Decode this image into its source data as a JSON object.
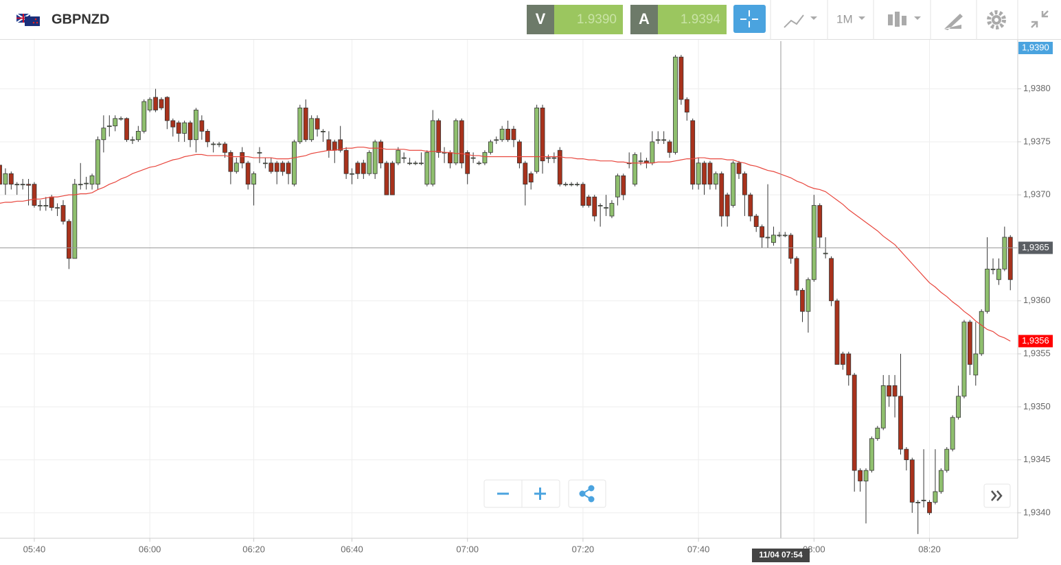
{
  "header": {
    "symbol": "GBPNZD",
    "sell_label": "V",
    "sell": "1.9390",
    "buy_label": "A",
    "buy": "1.9394",
    "timeframe": "1M"
  },
  "chart_data": {
    "type": "candlestick",
    "up_color": "#8fbf6e",
    "down_color": "#a8321c",
    "grid": true,
    "categories": [
      null,
      null,
      null,
      null,
      null,
      null,
      "05:40",
      null,
      null,
      null,
      null,
      null,
      null,
      null,
      null,
      null,
      null,
      null,
      null,
      null,
      null,
      null,
      null,
      null,
      null,
      null,
      "06:00",
      null,
      null,
      null,
      null,
      null,
      null,
      null,
      null,
      null,
      null,
      null,
      null,
      null,
      null,
      null,
      null,
      null,
      "06:20",
      null,
      null,
      null,
      null,
      null,
      null,
      null,
      null,
      null,
      null,
      null,
      null,
      null,
      null,
      null,
      null,
      "06:40",
      null,
      null,
      null,
      null,
      null,
      null,
      null,
      null,
      null,
      null,
      null,
      null,
      null,
      null,
      null,
      null,
      null,
      null,
      null,
      "07:00",
      null,
      null,
      null,
      null,
      null,
      null,
      null,
      null,
      null,
      null,
      null,
      null,
      null,
      null,
      null,
      null,
      null,
      null,
      null,
      "07:20",
      null,
      null,
      null,
      null,
      null,
      null,
      null,
      null,
      null,
      null,
      null,
      null,
      null,
      null,
      null,
      null,
      null,
      null,
      null,
      "07:40",
      null,
      null,
      null,
      null,
      null,
      null,
      null,
      null,
      null,
      null,
      null,
      null,
      null,
      null,
      null,
      null,
      null,
      null,
      null,
      "08:00",
      null,
      null,
      null,
      null,
      null,
      null,
      null,
      null,
      null,
      null,
      null,
      null,
      null,
      null,
      null,
      null,
      null,
      null,
      null,
      "08:20",
      null,
      null,
      null,
      null,
      null,
      null,
      null,
      null,
      null,
      null,
      null,
      null,
      null,
      null
    ],
    "open": [
      1.93728,
      1.9371,
      1.9372,
      1.9371,
      1.9371,
      1.9371,
      1.9371,
      1.9369,
      1.9369,
      1.93698,
      1.93688,
      1.9369,
      1.93675,
      1.9364,
      1.9371,
      1.93711,
      1.9371,
      1.9371,
      1.93752,
      1.93765,
      1.93765,
      1.93772,
      1.93772,
      1.93752,
      1.93752,
      1.9376,
      1.9378,
      1.93792,
      1.9379,
      1.93792,
      1.9377,
      1.93768,
      1.93758,
      1.93768,
      1.93752,
      1.9377,
      1.9376,
      1.93748,
      1.93748,
      1.93748,
      1.9374,
      1.93722,
      1.9374,
      1.9373,
      1.9371,
      1.9374,
      1.9373,
      1.9373,
      1.9373,
      1.9373,
      1.9373,
      1.9371,
      1.9375,
      1.93782,
      1.93752,
      1.93772,
      1.9376,
      1.93752,
      1.9375,
      1.93752,
      1.93742,
      1.9372,
      1.9373,
      1.9373,
      1.9372,
      1.9372,
      1.9375,
      1.9373,
      1.9373,
      1.9373,
      1.93735,
      1.9373,
      1.9373,
      1.9373,
      1.9371,
      1.9371,
      1.9377,
      1.9374,
      1.9374,
      1.9373,
      1.9377,
      1.9374,
      1.93735,
      1.9373,
      1.9373,
      1.9374,
      1.93752,
      1.93752,
      1.93762,
      1.93762,
      1.9375,
      1.9373,
      1.9372,
      1.93722,
      1.93782,
      1.93735,
      1.93735,
      1.93742,
      1.9371,
      1.9371,
      1.9371,
      1.9371,
      1.93698,
      1.93698,
      1.9369,
      1.93688,
      1.9368,
      1.93698,
      1.93718,
      1.9373,
      1.9371,
      1.93732,
      1.93732,
      1.9373,
      1.93752,
      1.93752,
      1.9375,
      1.9374,
      1.9383,
      1.9379,
      1.9377,
      1.9371,
      1.9373,
      1.9373,
      1.9371,
      1.9372,
      1.937,
      1.9369,
      1.9373,
      1.9372,
      1.937,
      1.9368,
      1.9367,
      1.9366,
      1.93655,
      1.93662,
      1.93662,
      1.93662,
      1.9364,
      1.9361,
      1.9359,
      1.9362,
      1.9369,
      1.93645,
      1.9364,
      1.936,
      1.9355,
      1.9355,
      1.9353,
      1.9344,
      1.9343,
      1.9344,
      1.9347,
      1.9348,
      1.9352,
      1.9352,
      1.9351,
      1.9346,
      1.9345,
      1.9341,
      1.93412,
      1.9341,
      1.9341,
      1.9342,
      1.9344,
      1.9346,
      1.9349,
      1.9351,
      1.9358,
      1.9353,
      1.9355,
      1.9359,
      1.9363,
      1.9362,
      1.9363,
      1.9366
    ],
    "high": [
      1.9373,
      1.93725,
      1.93722,
      1.93712,
      1.93715,
      1.93715,
      1.93712,
      1.93695,
      1.93698,
      1.937,
      1.93692,
      1.93695,
      1.93677,
      1.93715,
      1.9373,
      1.93717,
      1.9372,
      1.93755,
      1.93775,
      1.93775,
      1.93775,
      1.93774,
      1.93773,
      1.93755,
      1.93765,
      1.9379,
      1.93792,
      1.938,
      1.93792,
      1.93793,
      1.93772,
      1.9377,
      1.9377,
      1.9377,
      1.93782,
      1.93775,
      1.93762,
      1.9375,
      1.9375,
      1.9375,
      1.93742,
      1.93735,
      1.93745,
      1.93732,
      1.93722,
      1.93745,
      1.93735,
      1.93735,
      1.93732,
      1.93732,
      1.93732,
      1.93752,
      1.93785,
      1.9379,
      1.93775,
      1.93775,
      1.93762,
      1.9376,
      1.93752,
      1.93765,
      1.93745,
      1.93725,
      1.93732,
      1.93733,
      1.93742,
      1.93752,
      1.93752,
      1.93732,
      1.93732,
      1.93745,
      1.9374,
      1.93735,
      1.93732,
      1.9374,
      1.93742,
      1.9378,
      1.93772,
      1.93745,
      1.93742,
      1.93772,
      1.93772,
      1.93742,
      1.9374,
      1.93732,
      1.93742,
      1.93752,
      1.93755,
      1.93765,
      1.9377,
      1.93765,
      1.93752,
      1.93732,
      1.93722,
      1.93785,
      1.93785,
      1.93738,
      1.9374,
      1.93745,
      1.93712,
      1.93712,
      1.93712,
      1.93712,
      1.937,
      1.937,
      1.93692,
      1.937,
      1.93695,
      1.9372,
      1.9372,
      1.9374,
      1.9374,
      1.9374,
      1.93735,
      1.9376,
      1.9376,
      1.9376,
      1.93752,
      1.93832,
      1.93832,
      1.93792,
      1.93772,
      1.93735,
      1.93732,
      1.93732,
      1.93722,
      1.93722,
      1.93702,
      1.93732,
      1.93732,
      1.93722,
      1.93702,
      1.93682,
      1.93672,
      1.9371,
      1.9367,
      1.93665,
      1.93665,
      1.93664,
      1.93642,
      1.93612,
      1.93622,
      1.937,
      1.93692,
      1.9366,
      1.93642,
      1.93602,
      1.93552,
      1.93552,
      1.93532,
      1.93442,
      1.93442,
      1.93472,
      1.93482,
      1.9353,
      1.9353,
      1.9353,
      1.9355,
      1.93462,
      1.93452,
      1.93412,
      1.9346,
      1.93412,
      1.9346,
      1.93442,
      1.93462,
      1.93492,
      1.9352,
      1.93582,
      1.93582,
      1.9358,
      1.93592,
      1.9366,
      1.9364,
      1.9364,
      1.9367,
      1.93662
    ],
    "low": [
      1.937,
      1.937,
      1.93705,
      1.937,
      1.93705,
      1.9369,
      1.93688,
      1.93685,
      1.93685,
      1.93685,
      1.9368,
      1.93672,
      1.9363,
      1.9364,
      1.93705,
      1.93705,
      1.93705,
      1.93705,
      1.9374,
      1.93755,
      1.9376,
      1.9377,
      1.9375,
      1.93748,
      1.9375,
      1.93758,
      1.93778,
      1.93778,
      1.9378,
      1.93762,
      1.93755,
      1.9375,
      1.9375,
      1.93745,
      1.9374,
      1.93752,
      1.93745,
      1.9374,
      1.93745,
      1.93735,
      1.9371,
      1.9372,
      1.93725,
      1.93705,
      1.9369,
      1.9373,
      1.93725,
      1.9372,
      1.9371,
      1.93718,
      1.9371,
      1.93708,
      1.93748,
      1.9375,
      1.9375,
      1.93755,
      1.9375,
      1.93735,
      1.9373,
      1.9374,
      1.93715,
      1.9371,
      1.93715,
      1.93715,
      1.93718,
      1.93715,
      1.93725,
      1.937,
      1.937,
      1.93728,
      1.9373,
      1.93728,
      1.93728,
      1.93728,
      1.93708,
      1.93708,
      1.93735,
      1.9373,
      1.93725,
      1.93728,
      1.93725,
      1.9371,
      1.9373,
      1.93728,
      1.93728,
      1.93738,
      1.93748,
      1.9375,
      1.9375,
      1.93745,
      1.93725,
      1.9369,
      1.93705,
      1.9372,
      1.9372,
      1.9373,
      1.9373,
      1.93708,
      1.93708,
      1.93708,
      1.93708,
      1.93688,
      1.93688,
      1.93675,
      1.9367,
      1.9368,
      1.93678,
      1.9369,
      1.93695,
      1.93725,
      1.93708,
      1.93728,
      1.93725,
      1.93728,
      1.93748,
      1.93748,
      1.93735,
      1.93738,
      1.93785,
      1.9377,
      1.93705,
      1.93705,
      1.937,
      1.93705,
      1.93705,
      1.9367,
      1.9367,
      1.93688,
      1.93715,
      1.9368,
      1.93675,
      1.93665,
      1.9365,
      1.9365,
      1.93652,
      1.9366,
      1.9366,
      1.93635,
      1.93605,
      1.9358,
      1.9357,
      1.93618,
      1.9365,
      1.9364,
      1.93595,
      1.9354,
      1.93535,
      1.9352,
      1.9342,
      1.9342,
      1.9339,
      1.93438,
      1.93468,
      1.93478,
      1.935,
      1.9349,
      1.93455,
      1.9344,
      1.934,
      1.9338,
      1.93405,
      1.93398,
      1.93408,
      1.93418,
      1.93438,
      1.93458,
      1.93488,
      1.93508,
      1.9353,
      1.9352,
      1.93548,
      1.93588,
      1.93625,
      1.93615,
      1.93628,
      1.9361
    ],
    "close": [
      1.9371,
      1.9372,
      1.9371,
      1.9371,
      1.9371,
      1.93709,
      1.9369,
      1.9369,
      1.9369,
      1.93688,
      1.93688,
      1.93675,
      1.9364,
      1.9371,
      1.9371,
      1.93711,
      1.93718,
      1.93752,
      1.93763,
      1.93765,
      1.93772,
      1.93772,
      1.93752,
      1.93752,
      1.9376,
      1.93788,
      1.9379,
      1.9378,
      1.93782,
      1.9377,
      1.93764,
      1.93758,
      1.93768,
      1.93752,
      1.9378,
      1.9376,
      1.9375,
      1.93748,
      1.93748,
      1.9374,
      1.93722,
      1.9373,
      1.9373,
      1.9371,
      1.9372,
      1.9374,
      1.9373,
      1.93722,
      1.93722,
      1.93722,
      1.9372,
      1.9375,
      1.93782,
      1.93752,
      1.93772,
      1.93762,
      1.9376,
      1.93742,
      1.93742,
      1.93742,
      1.9372,
      1.9372,
      1.9372,
      1.9372,
      1.9374,
      1.9375,
      1.9373,
      1.937,
      1.937,
      1.93742,
      1.93735,
      1.9373,
      1.9373,
      1.9373,
      1.9374,
      1.9377,
      1.9374,
      1.9374,
      1.9373,
      1.9377,
      1.9373,
      1.9372,
      1.93735,
      1.9373,
      1.9374,
      1.9375,
      1.93752,
      1.93762,
      1.93752,
      1.93752,
      1.9373,
      1.9371,
      1.93712,
      1.93782,
      1.93732,
      1.93735,
      1.93735,
      1.9371,
      1.9371,
      1.9371,
      1.9371,
      1.9369,
      1.9369,
      1.9368,
      1.9369,
      1.93688,
      1.93692,
      1.93718,
      1.937,
      1.9373,
      1.93738,
      1.93732,
      1.9373,
      1.9375,
      1.93752,
      1.93752,
      1.9374,
      1.9383,
      1.9379,
      1.93778,
      1.9371,
      1.9373,
      1.9371,
      1.9371,
      1.9372,
      1.9368,
      1.9368,
      1.9373,
      1.9372,
      1.937,
      1.9368,
      1.9367,
      1.9366,
      1.9366,
      1.93662,
      1.93662,
      1.93662,
      1.9364,
      1.9361,
      1.9359,
      1.9362,
      1.9369,
      1.9366,
      1.93645,
      1.936,
      1.9354,
      1.9354,
      1.9353,
      1.9344,
      1.9343,
      1.9344,
      1.9347,
      1.9348,
      1.9352,
      1.9351,
      1.9351,
      1.9346,
      1.9345,
      1.9341,
      1.9341,
      1.93412,
      1.934,
      1.9342,
      1.9344,
      1.9346,
      1.9349,
      1.9351,
      1.9358,
      1.9354,
      1.9355,
      1.9359,
      1.9363,
      1.9363,
      1.9363,
      1.9366,
      1.9362
    ],
    "moving_average": {
      "color": "#e8453c",
      "values": [
        1.93692,
        1.93693,
        1.93693,
        1.93694,
        1.93694,
        1.93695,
        1.93696,
        1.93696,
        1.93697,
        1.93698,
        1.93698,
        1.93699,
        1.937,
        1.937,
        1.93701,
        1.93701,
        1.93702,
        1.93705,
        1.93707,
        1.9371,
        1.93712,
        1.93715,
        1.93717,
        1.9372,
        1.93722,
        1.93724,
        1.93726,
        1.93727,
        1.93729,
        1.93731,
        1.93733,
        1.93734,
        1.93736,
        1.93737,
        1.93738,
        1.93738,
        1.93737,
        1.93737,
        1.93737,
        1.93737,
        1.93736,
        1.93736,
        1.93736,
        1.93736,
        1.93735,
        1.93735,
        1.93735,
        1.93735,
        1.93734,
        1.93734,
        1.93734,
        1.93735,
        1.93736,
        1.93737,
        1.93739,
        1.9374,
        1.93741,
        1.93742,
        1.93742,
        1.93743,
        1.93744,
        1.93744,
        1.93745,
        1.93745,
        1.93744,
        1.93744,
        1.93744,
        1.93743,
        1.93743,
        1.93743,
        1.93743,
        1.93742,
        1.93742,
        1.93742,
        1.93741,
        1.93741,
        1.93741,
        1.9374,
        1.9374,
        1.93739,
        1.93739,
        1.93738,
        1.93737,
        1.93737,
        1.93736,
        1.93736,
        1.93736,
        1.93736,
        1.93736,
        1.93736,
        1.93736,
        1.93736,
        1.93736,
        1.93736,
        1.93736,
        1.93736,
        1.93736,
        1.93736,
        1.93735,
        1.93735,
        1.93734,
        1.93734,
        1.93733,
        1.93733,
        1.93732,
        1.93732,
        1.93732,
        1.93731,
        1.93731,
        1.9373,
        1.9373,
        1.9373,
        1.9373,
        1.9373,
        1.93731,
        1.93731,
        1.93731,
        1.93732,
        1.93733,
        1.93734,
        1.93734,
        1.93735,
        1.93735,
        1.93734,
        1.93734,
        1.93734,
        1.93733,
        1.93733,
        1.93731,
        1.9373,
        1.93728,
        1.93727,
        1.93725,
        1.93723,
        1.93722,
        1.9372,
        1.93718,
        1.93716,
        1.93713,
        1.93711,
        1.93708,
        1.93706,
        1.93705,
        1.93703,
        1.93699,
        1.93695,
        1.93691,
        1.93686,
        1.93682,
        1.93678,
        1.93674,
        1.9367,
        1.93666,
        1.93661,
        1.93657,
        1.93653,
        1.93647,
        1.93641,
        1.93635,
        1.93629,
        1.93623,
        1.93617,
        1.93613,
        1.93608,
        1.93604,
        1.93599,
        1.93595,
        1.9359,
        1.93586,
        1.93581,
        1.93577,
        1.93573,
        1.93571,
        1.93567,
        1.93565,
        1.93562
      ],
      "label": "1,9356"
    },
    "ylim": [
      1.93376,
      1.93845
    ],
    "yticks": [
      {
        "value": 1.934,
        "label": "1,9340"
      },
      {
        "value": 1.9345,
        "label": "1,9345"
      },
      {
        "value": 1.935,
        "label": "1,9350"
      },
      {
        "value": 1.9355,
        "label": "1,9355"
      },
      {
        "value": 1.936,
        "label": "1,9360"
      },
      {
        "value": 1.9365,
        "label": "1,9365"
      },
      {
        "value": 1.937,
        "label": "1,9370"
      },
      {
        "value": 1.9375,
        "label": "1,9375"
      },
      {
        "value": 1.938,
        "label": "1,9380"
      }
    ],
    "current_price": {
      "value": 1.939,
      "label": "1,9390"
    },
    "crosshair": {
      "value": 1.9365,
      "label": "1,9365",
      "time_label": "11/04 07:54"
    }
  }
}
